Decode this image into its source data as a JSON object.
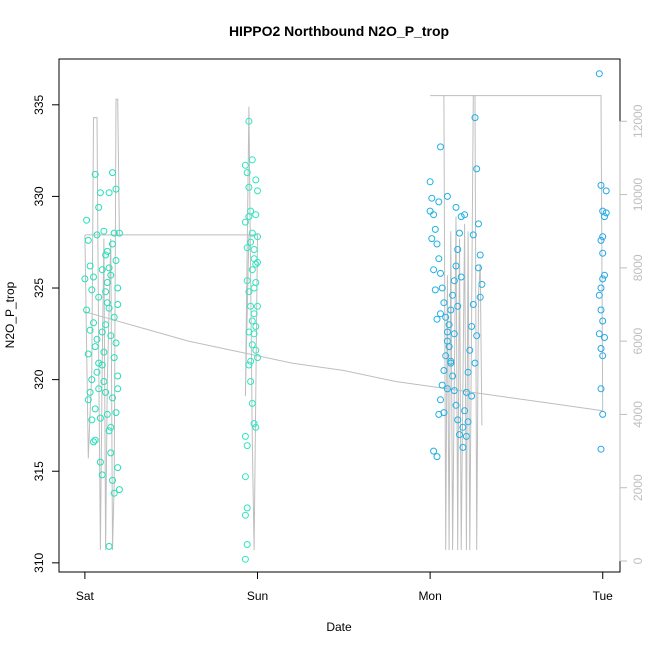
{
  "chart_data": {
    "type": "scatter",
    "title": "HIPPO2 Northbound N2O_P_trop",
    "xlabel": "Date",
    "ylabel": "N2O_P_trop",
    "x_ticks": [
      "Sat",
      "Sun",
      "Mon",
      "Tue"
    ],
    "xlim_days": [
      -0.15,
      3.1
    ],
    "ylim": [
      309.5,
      337.5
    ],
    "y_ticks": [
      310,
      315,
      320,
      325,
      330,
      335
    ],
    "y2_ticks": [
      0,
      2000,
      4000,
      6000,
      8000,
      10000,
      12000
    ],
    "y2lim": [
      -300,
      13700
    ],
    "colors": {
      "series_sat": "#22e0b8",
      "series_sun": "#2de6c0",
      "series_mon": "#1eb0e6",
      "series_tue": "#22a8e8",
      "altitude_line": "#bebebe",
      "axis": "#000000",
      "right_axis": "#bebebe"
    },
    "series": [
      {
        "color_key": "series_sat",
        "x_range": [
          0.0,
          0.2
        ],
        "points": [
          [
            0.01,
            328.7
          ],
          [
            0.02,
            327.6
          ],
          [
            0.03,
            326.2
          ],
          [
            0.04,
            324.9
          ],
          [
            0.05,
            323.1
          ],
          [
            0.06,
            321.8
          ],
          [
            0.07,
            320.4
          ],
          [
            0.08,
            319.5
          ],
          [
            0.02,
            318.9
          ],
          [
            0.04,
            317.8
          ],
          [
            0.06,
            316.7
          ],
          [
            0.09,
            315.5
          ],
          [
            0.1,
            314.8
          ],
          [
            0.03,
            322.7
          ],
          [
            0.05,
            325.6
          ],
          [
            0.07,
            327.9
          ],
          [
            0.08,
            329.4
          ],
          [
            0.09,
            330.2
          ],
          [
            0.06,
            331.2
          ],
          [
            0.11,
            328.1
          ],
          [
            0.12,
            326.8
          ],
          [
            0.13,
            325.3
          ],
          [
            0.14,
            323.9
          ],
          [
            0.15,
            322.4
          ],
          [
            0.1,
            320.8
          ],
          [
            0.12,
            319.3
          ],
          [
            0.13,
            318.1
          ],
          [
            0.14,
            317.2
          ],
          [
            0.15,
            316.0
          ],
          [
            0.16,
            314.5
          ],
          [
            0.17,
            313.8
          ],
          [
            0.11,
            321.5
          ],
          [
            0.13,
            324.2
          ],
          [
            0.14,
            326.1
          ],
          [
            0.16,
            327.4
          ],
          [
            0.17,
            328.0
          ],
          [
            0.18,
            326.5
          ],
          [
            0.19,
            325.0
          ],
          [
            0.17,
            323.4
          ],
          [
            0.18,
            322.0
          ],
          [
            0.19,
            320.2
          ],
          [
            0.16,
            319.0
          ],
          [
            0.15,
            317.4
          ],
          [
            0.14,
            330.2
          ],
          [
            0.16,
            331.3
          ],
          [
            0.18,
            330.4
          ],
          [
            0.2,
            328.0
          ],
          [
            0.19,
            324.1
          ],
          [
            0.18,
            318.2
          ],
          [
            0.19,
            315.2
          ],
          [
            0.2,
            314.0
          ],
          [
            0.14,
            310.9
          ],
          [
            0.08,
            324.5
          ],
          [
            0.1,
            326.0
          ],
          [
            0.12,
            323.0
          ],
          [
            0.11,
            319.9
          ],
          [
            0.09,
            317.9
          ],
          [
            0.07,
            322.2
          ],
          [
            0.04,
            320.0
          ],
          [
            0.02,
            321.4
          ],
          [
            0.0,
            325.5
          ],
          [
            0.01,
            323.8
          ],
          [
            0.03,
            319.3
          ],
          [
            0.05,
            316.6
          ],
          [
            0.06,
            318.4
          ],
          [
            0.08,
            320.9
          ],
          [
            0.1,
            322.6
          ],
          [
            0.12,
            324.8
          ],
          [
            0.13,
            327.0
          ],
          [
            0.15,
            325.7
          ],
          [
            0.17,
            321.2
          ],
          [
            0.19,
            319.5
          ]
        ]
      },
      {
        "color_key": "series_sun",
        "x_range": [
          0.92,
          1.0
        ],
        "points": [
          [
            0.93,
            331.7
          ],
          [
            0.94,
            331.3
          ],
          [
            0.95,
            330.5
          ],
          [
            0.96,
            329.2
          ],
          [
            0.97,
            328.0
          ],
          [
            0.98,
            327.1
          ],
          [
            0.99,
            326.3
          ],
          [
            0.94,
            325.4
          ],
          [
            0.95,
            324.8
          ],
          [
            0.96,
            324.0
          ],
          [
            0.97,
            323.2
          ],
          [
            0.98,
            322.5
          ],
          [
            0.99,
            321.6
          ],
          [
            0.95,
            320.8
          ],
          [
            0.96,
            319.9
          ],
          [
            0.97,
            318.7
          ],
          [
            0.98,
            317.6
          ],
          [
            0.93,
            316.9
          ],
          [
            0.94,
            316.4
          ],
          [
            0.93,
            314.7
          ],
          [
            0.94,
            313.0
          ],
          [
            0.93,
            312.6
          ],
          [
            0.94,
            311.0
          ],
          [
            0.93,
            310.2
          ],
          [
            0.95,
            334.1
          ],
          [
            0.97,
            332.0
          ],
          [
            0.99,
            330.9
          ],
          [
            1.0,
            330.3
          ],
          [
            0.99,
            329.0
          ],
          [
            1.0,
            327.8
          ],
          [
            0.98,
            326.6
          ],
          [
            1.0,
            326.4
          ],
          [
            0.99,
            325.3
          ],
          [
            1.0,
            324.0
          ],
          [
            0.98,
            323.6
          ],
          [
            0.99,
            322.9
          ],
          [
            0.97,
            321.9
          ],
          [
            0.96,
            321.0
          ],
          [
            0.95,
            322.6
          ],
          [
            0.96,
            327.5
          ],
          [
            0.97,
            326.0
          ],
          [
            0.98,
            325.0
          ],
          [
            0.94,
            327.2
          ],
          [
            0.93,
            328.6
          ],
          [
            0.95,
            328.9
          ],
          [
            1.0,
            321.2
          ],
          [
            0.99,
            317.4
          ]
        ]
      },
      {
        "color_key": "series_mon",
        "x_range": [
          1.99,
          2.3
        ],
        "points": [
          [
            2.0,
            330.8
          ],
          [
            2.01,
            329.9
          ],
          [
            2.02,
            329.0
          ],
          [
            2.03,
            328.2
          ],
          [
            2.04,
            327.4
          ],
          [
            2.05,
            326.6
          ],
          [
            2.06,
            325.8
          ],
          [
            2.07,
            325.0
          ],
          [
            2.08,
            324.2
          ],
          [
            2.09,
            323.4
          ],
          [
            2.1,
            322.6
          ],
          [
            2.11,
            321.8
          ],
          [
            2.12,
            321.0
          ],
          [
            2.13,
            320.2
          ],
          [
            2.14,
            319.4
          ],
          [
            2.15,
            318.6
          ],
          [
            2.16,
            317.8
          ],
          [
            2.17,
            317.0
          ],
          [
            2.06,
            332.7
          ],
          [
            2.02,
            316.1
          ],
          [
            2.04,
            315.8
          ],
          [
            2.26,
            334.3
          ],
          [
            2.27,
            331.5
          ],
          [
            2.28,
            328.5
          ],
          [
            2.29,
            326.8
          ],
          [
            2.3,
            325.2
          ],
          [
            2.25,
            324.1
          ],
          [
            2.24,
            322.9
          ],
          [
            2.23,
            321.6
          ],
          [
            2.22,
            320.4
          ],
          [
            2.21,
            319.3
          ],
          [
            2.2,
            318.3
          ],
          [
            2.19,
            317.4
          ],
          [
            2.18,
            328.9
          ],
          [
            2.17,
            328.0
          ],
          [
            2.16,
            327.1
          ],
          [
            2.15,
            326.2
          ],
          [
            2.14,
            325.4
          ],
          [
            2.13,
            324.6
          ],
          [
            2.12,
            323.8
          ],
          [
            2.11,
            323.0
          ],
          [
            2.1,
            322.1
          ],
          [
            2.09,
            321.3
          ],
          [
            2.08,
            320.5
          ],
          [
            2.07,
            319.7
          ],
          [
            2.06,
            318.9
          ],
          [
            2.05,
            318.1
          ],
          [
            2.04,
            323.3
          ],
          [
            2.03,
            324.9
          ],
          [
            2.02,
            326.0
          ],
          [
            2.01,
            327.7
          ],
          [
            2.0,
            329.2
          ],
          [
            2.05,
            329.7
          ],
          [
            2.1,
            330.0
          ],
          [
            2.15,
            329.4
          ],
          [
            2.2,
            329.0
          ],
          [
            2.25,
            327.9
          ],
          [
            2.28,
            326.1
          ],
          [
            2.29,
            324.5
          ],
          [
            2.27,
            322.4
          ],
          [
            2.26,
            320.9
          ],
          [
            2.24,
            319.1
          ],
          [
            2.22,
            317.7
          ],
          [
            2.21,
            316.9
          ],
          [
            2.19,
            316.3
          ],
          [
            2.18,
            325.6
          ],
          [
            2.16,
            324.0
          ],
          [
            2.14,
            322.5
          ],
          [
            2.12,
            320.9
          ],
          [
            2.1,
            319.5
          ],
          [
            2.08,
            318.2
          ],
          [
            2.06,
            323.6
          ]
        ]
      },
      {
        "color_key": "series_tue",
        "x_range": [
          2.97,
          3.02
        ],
        "points": [
          [
            2.98,
            336.7
          ],
          [
            2.99,
            330.6
          ],
          [
            3.0,
            329.2
          ],
          [
            3.01,
            328.9
          ],
          [
            3.0,
            327.8
          ],
          [
            2.99,
            327.6
          ],
          [
            3.01,
            325.7
          ],
          [
            3.0,
            325.5
          ],
          [
            2.99,
            325.0
          ],
          [
            2.98,
            324.6
          ],
          [
            2.99,
            323.8
          ],
          [
            3.0,
            323.2
          ],
          [
            3.01,
            322.3
          ],
          [
            2.99,
            321.7
          ],
          [
            3.0,
            321.3
          ],
          [
            2.99,
            319.5
          ],
          [
            3.0,
            318.1
          ],
          [
            2.99,
            316.2
          ],
          [
            3.02,
            330.3
          ],
          [
            3.0,
            326.9
          ],
          [
            2.98,
            322.5
          ],
          [
            3.02,
            329.1
          ]
        ]
      }
    ],
    "altitude_line": {
      "segments": [
        [
          [
            0.0,
            8900
          ],
          [
            0.02,
            2800
          ],
          [
            0.04,
            5200
          ],
          [
            0.05,
            12100
          ],
          [
            0.07,
            12100
          ],
          [
            0.08,
            5600
          ],
          [
            0.09,
            300
          ],
          [
            0.1,
            5400
          ],
          [
            0.11,
            8800
          ],
          [
            0.12,
            300
          ],
          [
            0.13,
            4900
          ],
          [
            0.15,
            8800
          ],
          [
            0.16,
            300
          ],
          [
            0.17,
            2100
          ],
          [
            0.18,
            12600
          ],
          [
            0.19,
            12600
          ],
          [
            0.2,
            8900
          ],
          [
            0.0,
            8900
          ],
          [
            1.0,
            8900
          ],
          [
            0.98,
            300
          ],
          [
            0.97,
            3300
          ],
          [
            0.95,
            12400
          ],
          [
            0.93,
            4500
          ],
          [
            0.95,
            8900
          ]
        ],
        [
          [
            0.0,
            6800
          ],
          [
            0.3,
            6400
          ],
          [
            0.6,
            6000
          ],
          [
            0.9,
            5700
          ],
          [
            1.2,
            5400
          ],
          [
            1.5,
            5200
          ],
          [
            1.8,
            4900
          ],
          [
            2.1,
            4700
          ],
          [
            2.4,
            4500
          ],
          [
            2.7,
            4300
          ],
          [
            3.0,
            4100
          ]
        ],
        [
          [
            2.0,
            12700
          ],
          [
            2.08,
            12700
          ],
          [
            2.09,
            300
          ],
          [
            2.1,
            7800
          ],
          [
            2.11,
            300
          ],
          [
            2.12,
            9000
          ],
          [
            2.13,
            300
          ],
          [
            2.15,
            9400
          ],
          [
            2.16,
            300
          ],
          [
            2.17,
            8800
          ],
          [
            2.18,
            300
          ],
          [
            2.2,
            9200
          ],
          [
            2.21,
            300
          ],
          [
            2.22,
            9000
          ],
          [
            2.23,
            300
          ],
          [
            2.25,
            12700
          ],
          [
            2.26,
            12700
          ],
          [
            2.27,
            300
          ],
          [
            2.28,
            7300
          ],
          [
            2.29,
            8100
          ],
          [
            2.3,
            3700
          ]
        ],
        [
          [
            2.08,
            12700
          ],
          [
            2.99,
            12700
          ],
          [
            3.0,
            4100
          ]
        ]
      ]
    }
  }
}
